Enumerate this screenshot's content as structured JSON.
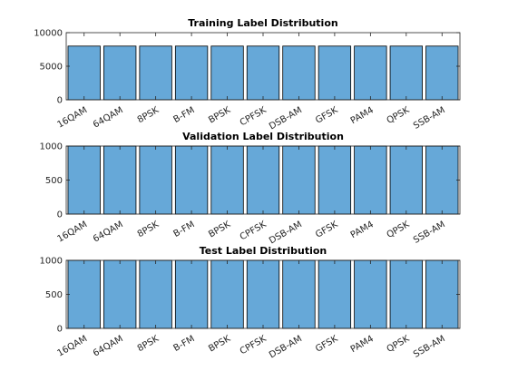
{
  "chart_data": [
    {
      "type": "bar",
      "title": "Training Label Distribution",
      "categories": [
        "16QAM",
        "64QAM",
        "8PSK",
        "B-FM",
        "BPSK",
        "CPFSK",
        "DSB-AM",
        "GFSK",
        "PAM4",
        "QPSK",
        "SSB-AM"
      ],
      "values": [
        8000,
        8000,
        8000,
        8000,
        8000,
        8000,
        8000,
        8000,
        8000,
        8000,
        8000
      ],
      "ylim": [
        0,
        10000
      ],
      "yticks": [
        0,
        5000,
        10000
      ],
      "xlabel": "",
      "ylabel": "",
      "grid": false,
      "bar_color": "#66a8d8"
    },
    {
      "type": "bar",
      "title": "Validation Label Distribution",
      "categories": [
        "16QAM",
        "64QAM",
        "8PSK",
        "B-FM",
        "BPSK",
        "CPFSK",
        "DSB-AM",
        "GFSK",
        "PAM4",
        "QPSK",
        "SSB-AM"
      ],
      "values": [
        1000,
        1000,
        1000,
        1000,
        1000,
        1000,
        1000,
        1000,
        1000,
        1000,
        1000
      ],
      "ylim": [
        0,
        1000
      ],
      "yticks": [
        0,
        500,
        1000
      ],
      "xlabel": "",
      "ylabel": "",
      "grid": false,
      "bar_color": "#66a8d8"
    },
    {
      "type": "bar",
      "title": "Test Label Distribution",
      "categories": [
        "16QAM",
        "64QAM",
        "8PSK",
        "B-FM",
        "BPSK",
        "CPFSK",
        "DSB-AM",
        "GFSK",
        "PAM4",
        "QPSK",
        "SSB-AM"
      ],
      "values": [
        1000,
        1000,
        1000,
        1000,
        1000,
        1000,
        1000,
        1000,
        1000,
        1000,
        1000
      ],
      "ylim": [
        0,
        1000
      ],
      "yticks": [
        0,
        500,
        1000
      ],
      "xlabel": "",
      "ylabel": "",
      "grid": false,
      "bar_color": "#66a8d8"
    }
  ]
}
